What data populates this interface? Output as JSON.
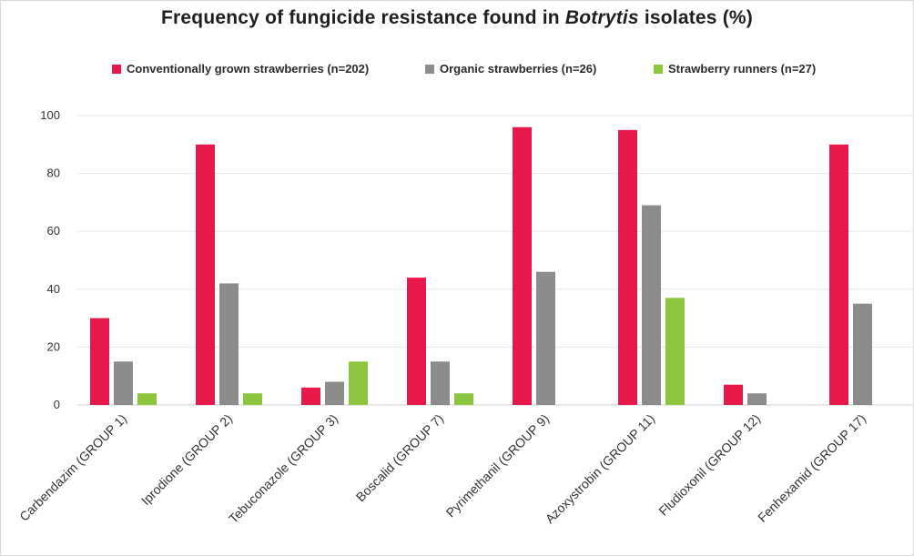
{
  "title_parts": {
    "before": "Frequency of fungicide resistance found in ",
    "italic": "Botrytis",
    "after": " isolates (%)"
  },
  "chart_data": {
    "type": "bar",
    "title": "Frequency of fungicide resistance found in Botrytis isolates (%)",
    "categories": [
      "Carbendazim (GROUP 1)",
      "Iprodione (GROUP 2)",
      "Tebuconazole (GROUP 3)",
      "Boscalid (GROUP 7)",
      "Pyrimethanil (GROUP 9)",
      "Azoxystrobin (GROUP 11)",
      "Fludioxonil (GROUP 12)",
      "Fenhexamid (GROUP 17)"
    ],
    "series": [
      {
        "name": "Conventionally grown strawberries (n=202)",
        "color": "#e8194a",
        "values": [
          30,
          90,
          6,
          44,
          96,
          95,
          7,
          90
        ]
      },
      {
        "name": "Organic strawberries (n=26)",
        "color": "#8c8c8c",
        "values": [
          15,
          42,
          8,
          15,
          46,
          69,
          4,
          35
        ]
      },
      {
        "name": "Strawberry runners (n=27)",
        "color": "#8cc63f",
        "values": [
          4,
          4,
          15,
          4,
          null,
          37,
          null,
          null
        ]
      }
    ],
    "ylim": [
      0,
      100
    ],
    "yticks": [
      0,
      20,
      40,
      60,
      80,
      100
    ],
    "xlabel": "",
    "ylabel": "",
    "grid": true,
    "legend_position": "top"
  }
}
